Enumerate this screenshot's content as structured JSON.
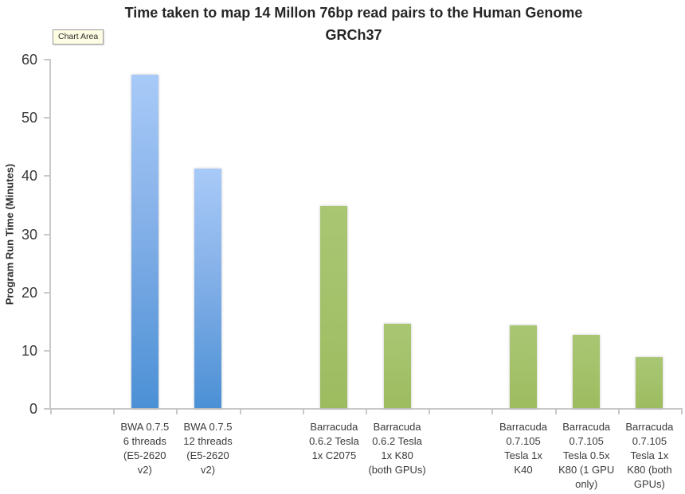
{
  "tooltip": {
    "label": "Chart Area"
  },
  "chart_data": {
    "type": "bar",
    "title": "Time taken to map 14 Millon 76bp read pairs to the Human Genome GRCh37",
    "title_lines": [
      "Time taken to map 14 Millon 76bp read pairs to the Human Genome",
      "GRCh37"
    ],
    "xlabel": "",
    "ylabel": "Program Run Time (Minutes)",
    "ylim": [
      0,
      60
    ],
    "yticks": [
      0,
      10,
      20,
      30,
      40,
      50,
      60
    ],
    "grid": false,
    "legend": false,
    "slot_count": 10,
    "categories": [
      "BWA 0.7.5 6 threads (E5-2620 v2)",
      "BWA 0.7.5 12 threads (E5-2620 v2)",
      "Barracuda 0.6.2 Tesla 1x C2075",
      "Barracuda 0.6.2 Tesla 1x K80 (both GPUs)",
      "Barracuda 0.7.105 Tesla 1x K40",
      "Barracuda 0.7.105 Tesla 0.5x K80 (1 GPU only)",
      "Barracuda 0.7.105 Tesla 1x K80 (both GPUs)"
    ],
    "values": [
      57.2,
      41.2,
      34.7,
      14.5,
      14.2,
      12.6,
      8.8
    ],
    "bars": [
      {
        "label_lines": "BWA 0.7.5\n6 threads\n(E5-2620\nv2)",
        "value": 57.2,
        "slot": 1,
        "color": "blue"
      },
      {
        "label_lines": "BWA 0.7.5\n12 threads\n(E5-2620\nv2)",
        "value": 41.2,
        "slot": 2,
        "color": "blue"
      },
      {
        "label_lines": "Barracuda\n0.6.2 Tesla\n1x C2075",
        "value": 34.7,
        "slot": 4,
        "color": "green"
      },
      {
        "label_lines": "Barracuda\n0.6.2 Tesla\n1x K80\n(both GPUs)",
        "value": 14.5,
        "slot": 5,
        "color": "green"
      },
      {
        "label_lines": "Barracuda\n0.7.105\nTesla 1x\nK40",
        "value": 14.2,
        "slot": 7,
        "color": "green"
      },
      {
        "label_lines": "Barracuda\n0.7.105\nTesla 0.5x\nK80 (1 GPU\nonly)",
        "value": 12.6,
        "slot": 8,
        "color": "green"
      },
      {
        "label_lines": "Barracuda\n0.7.105\nTesla 1x\nK80 (both\nGPUs)",
        "value": 8.8,
        "slot": 9,
        "color": "green"
      }
    ],
    "colors": {
      "bwa_bar_top": "#A8CAF8",
      "bwa_bar_bottom": "#4B90D5",
      "barracuda_bar": "#A3C169",
      "axis": "#C9C9C9",
      "title_text": "#262626",
      "label_text": "#3A3A3A",
      "tooltip_bg": "#FDFDE3"
    }
  }
}
